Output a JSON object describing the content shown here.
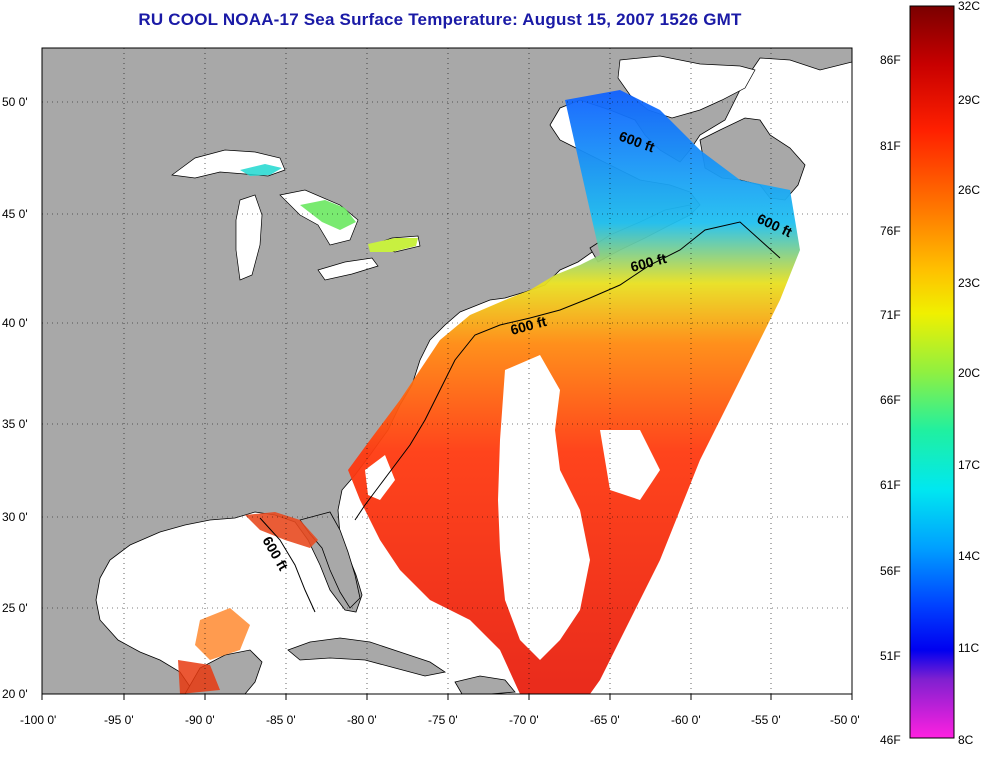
{
  "title": "RU COOL  NOAA-17  Sea Surface Temperature:  August 15, 2007 1526 GMT",
  "map": {
    "lon_labels": [
      "-100 0'",
      "-95 0'",
      "-90 0'",
      "-85 0'",
      "-80 0'",
      "-75 0'",
      "-70 0'",
      "-65 0'",
      "-60 0'",
      "-55 0'",
      "-50 0'"
    ],
    "lat_labels": [
      "50 0'",
      "45 0'",
      "40 0'",
      "35 0'",
      "30 0'",
      "25 0'",
      "20 0'"
    ],
    "isobath_label": "600 ft",
    "colors": {
      "land": "#a8a8a8",
      "ocean": "#ffffff",
      "title": "#1a1aa6"
    }
  },
  "colorbar": {
    "celsius_labels": [
      "32C",
      "29C",
      "26C",
      "23C",
      "20C",
      "17C",
      "14C",
      "11C",
      "8C"
    ],
    "fahrenheit_labels": [
      "86F",
      "81F",
      "76F",
      "71F",
      "66F",
      "61F",
      "56F",
      "51F",
      "46F"
    ]
  }
}
